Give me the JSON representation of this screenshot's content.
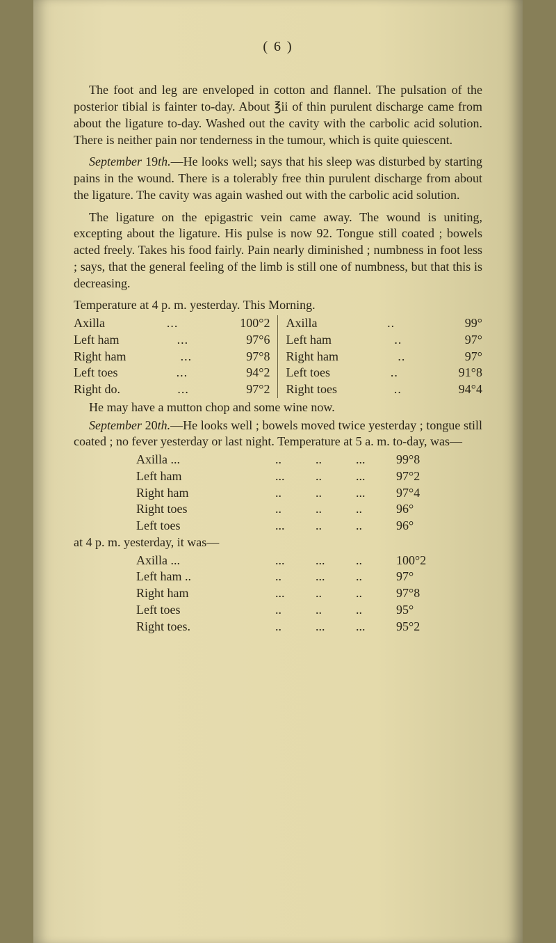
{
  "page_number_display": "(  6  )",
  "para1": "The foot and leg are enveloped in cotton and flannel. The pulsation of the posterior tibial is fainter to-day. About ℥ii of thin purulent discharge came from about the ligature to-day. Washed out the cavity with the carbolic acid solution. There is neither pain nor tenderness in the tumour, which is quite quiescent.",
  "para2_lead_italic": "September",
  "para2_lead_rest": " 19",
  "para2_lead_italic2": "th.",
  "para2_body": "—He looks well; says that his sleep was disturbed by starting pains in the wound. There is a toler­ably free thin purulent discharge from about the ligature. The cavity was again washed out with the carbolic acid solution.",
  "para3": "The ligature on the epigastric vein came away. The wound is uniting, excepting about the ligature. His pulse is now 92. Tongue still coated ; bowels acted freely. Takes his food fairly. Pain nearly diminished ; numbness in foot less ; says, that the general feeling of the limb is still one of numbness, but that this is decreasing.",
  "temp_heading": "Temperature at 4 p. m. yesterday.  This Morning.",
  "two_col": {
    "left": [
      {
        "label": "Axilla",
        "dots": "...",
        "value": "100°2"
      },
      {
        "label": "Left ham",
        "dots": "...",
        "value": "97°6"
      },
      {
        "label": "Right ham",
        "dots": "...",
        "value": "97°8"
      },
      {
        "label": "Left toes",
        "dots": "...",
        "value": "94°2"
      },
      {
        "label": "Right do.",
        "dots": "...",
        "value": "97°2"
      }
    ],
    "right": [
      {
        "label": "Axilla",
        "dots": "..",
        "value": "99°"
      },
      {
        "label": "Left ham",
        "dots": "..",
        "value": "97°"
      },
      {
        "label": "Right ham",
        "dots": "..",
        "value": "97°"
      },
      {
        "label": "Left toes",
        "dots": "..",
        "value": "91°8"
      },
      {
        "label": "Right toes",
        "dots": "..",
        "value": "94°4"
      }
    ]
  },
  "para4": "He may have a mutton chop and some wine now.",
  "para5_lead_italic": "September",
  "para5_lead_rest": " 20",
  "para5_lead_italic2": "th.",
  "para5_body": "—He looks well ; bowels moved twice yes­terday ; tongue still coated ; no fever yesterday or last night. Temperature at 5 a. m. to-day, was—",
  "list1": [
    {
      "label": "Axilla  ...",
      "mid": "..",
      "mid2": "..",
      "dots": "...",
      "value": "99°8"
    },
    {
      "label": "Left ham",
      "mid": "...",
      "mid2": "..",
      "dots": "...",
      "value": "97°2"
    },
    {
      "label": "Right ham",
      "mid": "..",
      "mid2": "..",
      "dots": "...",
      "value": "97°4"
    },
    {
      "label": "Right toes",
      "mid": "..",
      "mid2": "..",
      "dots": "..",
      "value": "96°"
    },
    {
      "label": "Left toes",
      "mid": "...",
      "mid2": "..",
      "dots": "..",
      "value": "96°"
    }
  ],
  "mid_line": "at 4 p. m. yesterday, it was—",
  "list2": [
    {
      "label": "Axilla  ...",
      "mid": "...",
      "mid2": "...",
      "dots": "..",
      "value": "100°2"
    },
    {
      "label": "Left ham ..",
      "mid": "..",
      "mid2": "...",
      "dots": "..",
      "value": "97°"
    },
    {
      "label": "Right ham",
      "mid": "...",
      "mid2": "..",
      "dots": "..",
      "value": "97°8"
    },
    {
      "label": "Left toes",
      "mid": "..",
      "mid2": "..",
      "dots": "..",
      "value": "95°"
    },
    {
      "label": "Right toes.",
      "mid": "..",
      "mid2": "...",
      "dots": "...",
      "value": "95°2"
    }
  ],
  "colors": {
    "page_bg": "#e4daab",
    "outer_bg": "#877f58",
    "text": "#2a2518"
  }
}
